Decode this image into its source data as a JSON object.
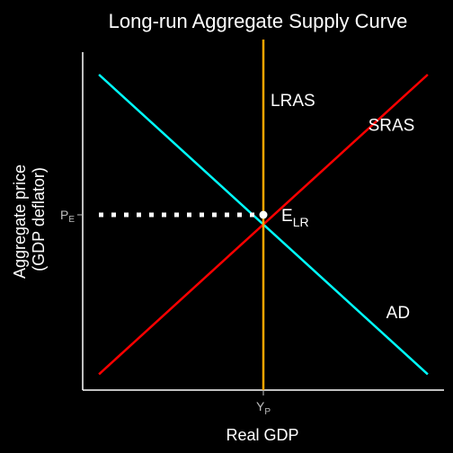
{
  "chart_data": {
    "type": "line",
    "title": "Long-run Aggregate Supply Curve",
    "xlabel": "Real GDP",
    "ylabel_line1": "Aggregate price",
    "ylabel_line2": "(GDP deflator)",
    "xlim": [
      0,
      10
    ],
    "ylim": [
      0,
      10
    ],
    "grid": false,
    "x_ticks": [
      {
        "value": 5,
        "main": "Y",
        "sub": "P"
      }
    ],
    "y_ticks": [
      {
        "value": 5,
        "main": "P",
        "sub": "E"
      }
    ],
    "series": [
      {
        "name": "AD",
        "color": "#00ffff",
        "points": [
          [
            0.45,
            9.0
          ],
          [
            9.55,
            0.45
          ]
        ]
      },
      {
        "name": "SRAS",
        "color": "#ff0000",
        "points": [
          [
            0.45,
            0.45
          ],
          [
            9.55,
            9.0
          ]
        ]
      },
      {
        "name": "LRAS",
        "color": "#ffa500",
        "points": [
          [
            5.0,
            0.0
          ],
          [
            5.0,
            10.0
          ]
        ]
      }
    ],
    "equilibrium": {
      "label_main": "E",
      "label_sub": "LR",
      "x": 5.0,
      "y": 5.0,
      "guide_color": "#ffffff"
    },
    "curve_labels": {
      "LRAS": {
        "text": "LRAS",
        "x": 5.2,
        "y": 8.1
      },
      "SRAS": {
        "text": "SRAS",
        "x": 7.9,
        "y": 7.4
      },
      "AD": {
        "text": "AD",
        "x": 8.4,
        "y": 2.05
      }
    }
  }
}
